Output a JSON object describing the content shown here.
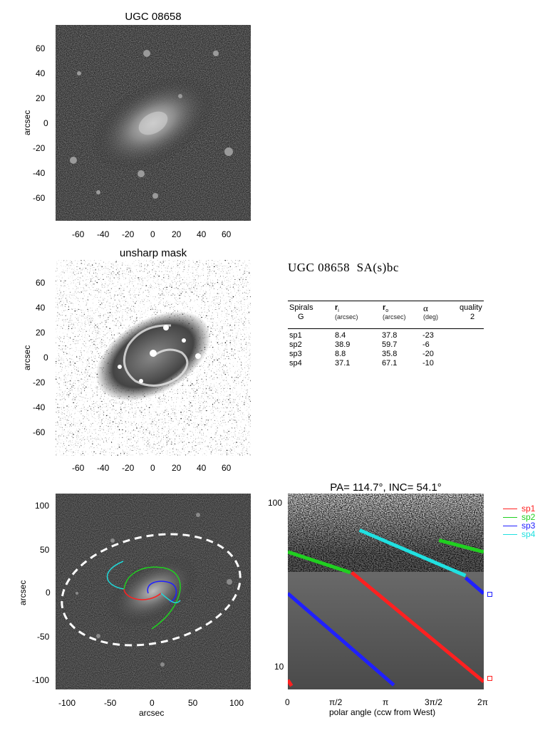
{
  "panel1": {
    "title": "UGC 08658",
    "ylabel": "arcsec",
    "yticks": [
      "60",
      "40",
      "20",
      "0",
      "-20",
      "-40",
      "-60"
    ],
    "xticks": [
      "-60",
      "-40",
      "-20",
      "0",
      "20",
      "40",
      "60"
    ]
  },
  "panel2": {
    "title": "unsharp mask",
    "ylabel": "arcsec",
    "yticks": [
      "60",
      "40",
      "20",
      "0",
      "-20",
      "-40",
      "-60"
    ],
    "xticks": [
      "-60",
      "-40",
      "-20",
      "0",
      "20",
      "40",
      "60"
    ]
  },
  "info": {
    "galaxy": "UGC 08658",
    "morph": "SA(s)bc",
    "headers": {
      "spirals": "Spirals",
      "spirals_sub": "G",
      "ri": "r",
      "ri_sub": "i",
      "ri_unit": "(arcsec)",
      "ro": "r",
      "ro_sub": "o",
      "ro_unit": "(arcsec)",
      "alpha": "α",
      "alpha_unit": "(deg)",
      "quality": "quality",
      "quality_val": "2"
    },
    "rows": [
      {
        "name": "sp1",
        "ri": "8.4",
        "ro": "37.8",
        "alpha": "-23"
      },
      {
        "name": "sp2",
        "ri": "38.9",
        "ro": "59.7",
        "alpha": "-6"
      },
      {
        "name": "sp3",
        "ri": "8.8",
        "ro": "35.8",
        "alpha": "-20"
      },
      {
        "name": "sp4",
        "ri": "37.1",
        "ro": "67.1",
        "alpha": "-10"
      }
    ]
  },
  "panel3": {
    "ylabel": "arcsec",
    "xlabel": "arcsec",
    "yticks": [
      "100",
      "50",
      "0",
      "-50",
      "-100"
    ],
    "xticks": [
      "-100",
      "-50",
      "0",
      "50",
      "100"
    ]
  },
  "panel4": {
    "title": "PA= 114.7°, INC=  54.1°",
    "xlabel": "polar angle (ccw from West)",
    "xticks": [
      "0",
      "π/2",
      "π",
      "3π/2",
      "2π"
    ],
    "yticks": [
      "100",
      "10"
    ]
  },
  "legend": [
    {
      "name": "sp1",
      "color": "#ff2020"
    },
    {
      "name": "sp2",
      "color": "#20d020"
    },
    {
      "name": "sp3",
      "color": "#2020ff"
    },
    {
      "name": "sp4",
      "color": "#20e0e0"
    }
  ],
  "chart_data": {
    "type": "line",
    "title": "PA= 114.7°, INC=  54.1°",
    "xlabel": "polar angle (ccw from West)",
    "ylabel": "",
    "y_scale": "log",
    "xlim": [
      0,
      6.283
    ],
    "ylim": [
      8.7,
      105
    ],
    "series": [
      {
        "name": "sp1",
        "color": "#ff2020",
        "segments": [
          [
            [
              0,
              9.8
            ],
            [
              0.12,
              9.1
            ]
          ],
          [
            [
              2.05,
              38.5
            ],
            [
              6.28,
              9.6
            ]
          ]
        ]
      },
      {
        "name": "sp2",
        "color": "#20d020",
        "segments": [
          [
            [
              0,
              50
            ],
            [
              2.0,
              38.5
            ]
          ],
          [
            [
              4.85,
              58
            ],
            [
              6.28,
              50
            ]
          ]
        ]
      },
      {
        "name": "sp3",
        "color": "#2020ff",
        "segments": [
          [
            [
              0,
              29.5
            ],
            [
              3.4,
              9.2
            ]
          ],
          [
            [
              5.7,
              36
            ],
            [
              6.28,
              29.5
            ]
          ]
        ]
      },
      {
        "name": "sp4",
        "color": "#20e0e0",
        "segments": [
          [
            [
              2.3,
              66
            ],
            [
              5.7,
              37
            ]
          ]
        ]
      }
    ]
  }
}
